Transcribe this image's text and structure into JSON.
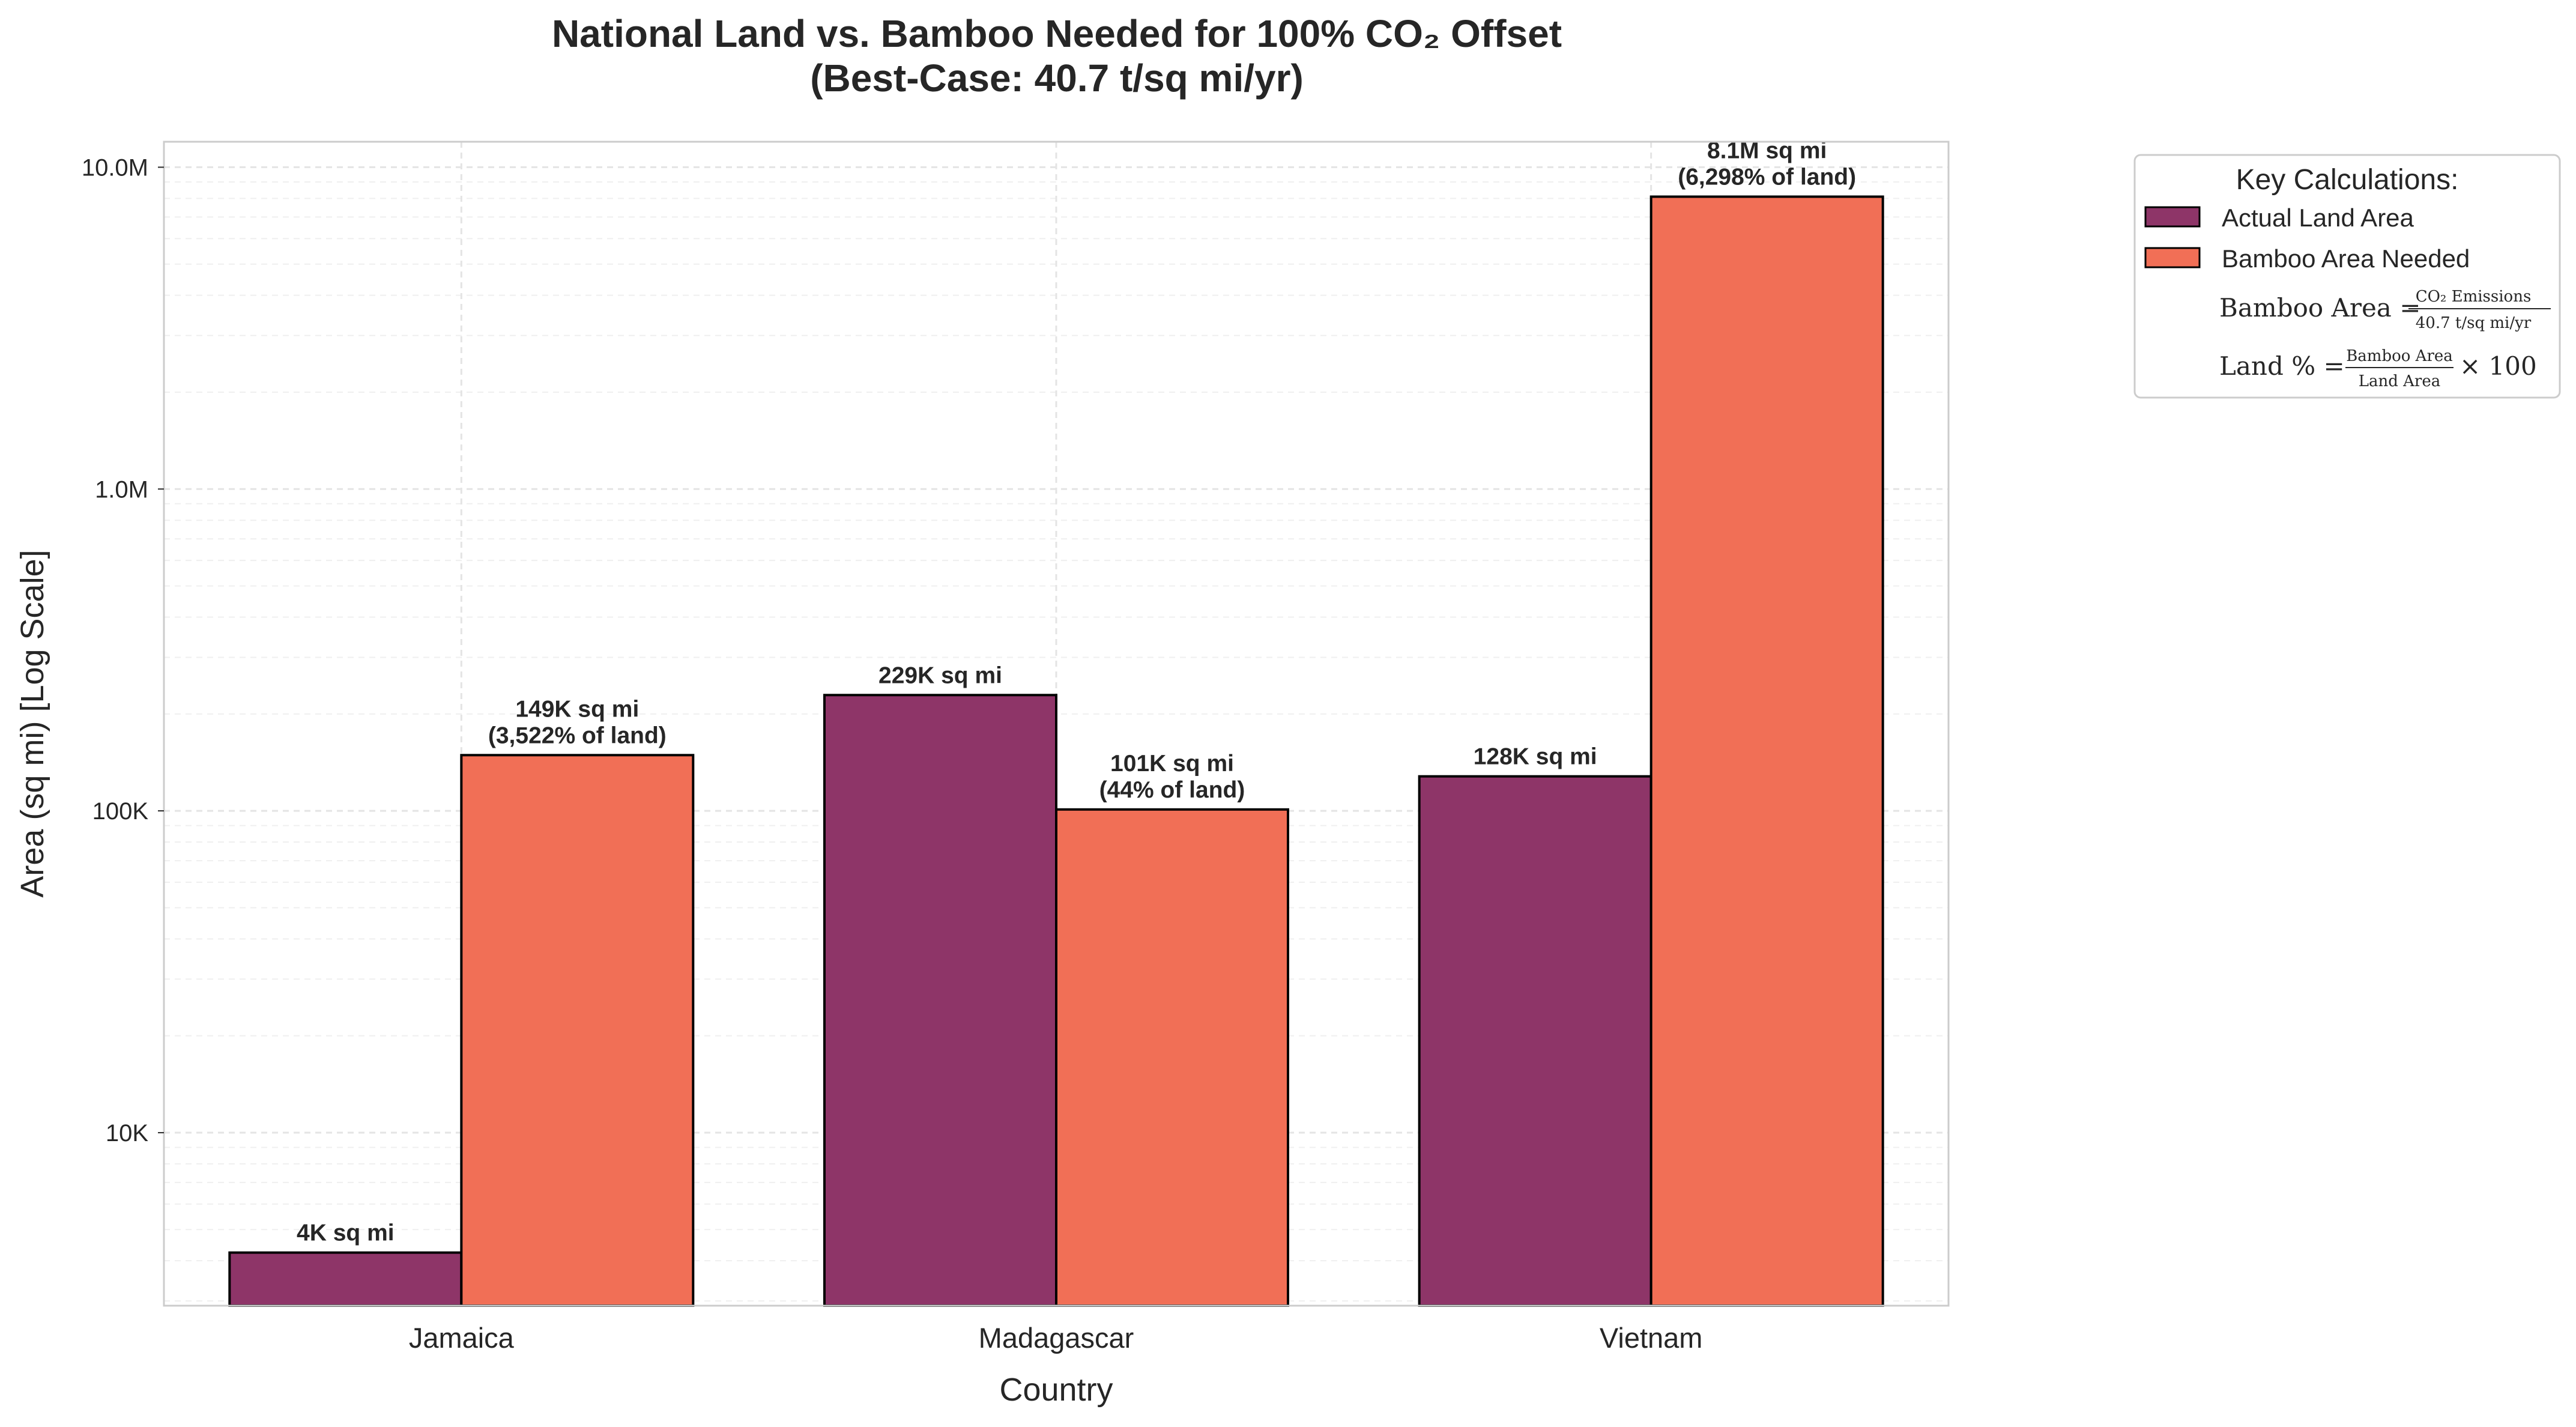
{
  "chart_data": {
    "type": "bar",
    "title_line1": "National Land vs. Bamboo Needed for 100% CO₂ Offset",
    "title_line2": "(Best-Case: 40.7 t/sq mi/yr)",
    "xlabel": "Country",
    "ylabel": "Area (sq mi) [Log Scale]",
    "yscale": "log",
    "ylim": [
      2900,
      12000000
    ],
    "yticks": [
      10000,
      100000,
      1000000,
      10000000
    ],
    "ytick_labels": [
      "10K",
      "100K",
      "1.0M",
      "10.0M"
    ],
    "grid": true,
    "legend_placement": "outside-top-right",
    "categories": [
      "Jamaica",
      "Madagascar",
      "Vietnam"
    ],
    "series": [
      {
        "name": "Actual Land Area",
        "color": "#8e3568",
        "values": [
          4240,
          229000,
          128000
        ],
        "labels": [
          "4K sq mi",
          "229K sq mi",
          "128K sq mi"
        ]
      },
      {
        "name": "Bamboo Area Needed",
        "color": "#f16f56",
        "values": [
          149000,
          101000,
          8100000
        ],
        "labels": [
          "149K sq mi\n(3,522% of land)",
          "101K sq mi\n(44% of land)",
          "8.1M sq mi\n(6,298% of land)"
        ]
      }
    ],
    "legend": {
      "title": "Key Calculations:",
      "formula1": {
        "lhs": "Bamboo Area",
        "numerator": "CO₂ Emissions",
        "denominator": "40.7 t/sq mi/yr"
      },
      "formula2": {
        "lhs": "Land %",
        "numerator": "Bamboo Area",
        "denominator": "Land Area",
        "tail": "× 100"
      }
    }
  }
}
